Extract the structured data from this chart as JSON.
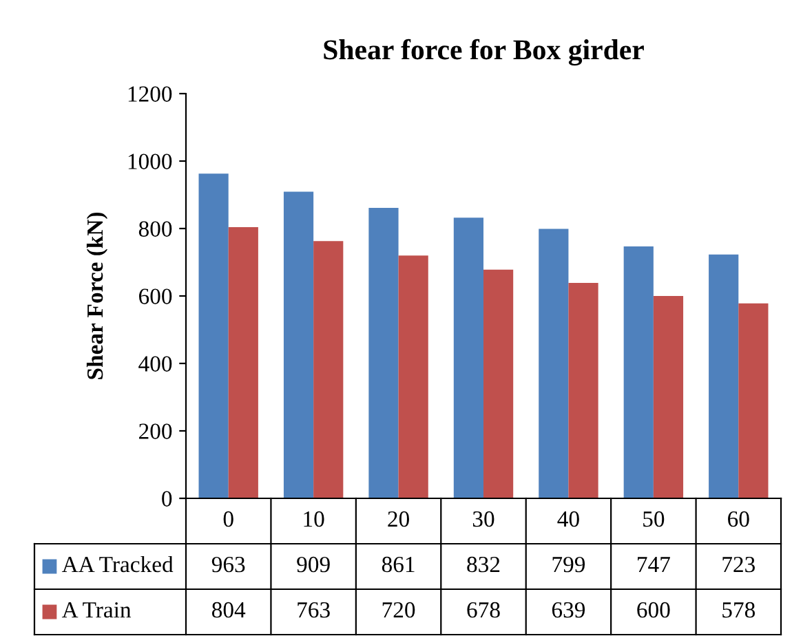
{
  "chart_data": {
    "type": "bar",
    "title": "Shear force for Box girder",
    "ylabel": "Shear Force (kN)",
    "categories": [
      "0",
      "10",
      "20",
      "30",
      "40",
      "50",
      "60"
    ],
    "series": [
      {
        "name": "AA Tracked",
        "color": "#4f81bd",
        "values": [
          963,
          909,
          861,
          832,
          799,
          747,
          723
        ]
      },
      {
        "name": "A Train",
        "color": "#c0504d",
        "values": [
          804,
          763,
          720,
          678,
          639,
          600,
          578
        ]
      }
    ],
    "ylim": [
      0,
      1200
    ],
    "yticks": [
      0,
      200,
      400,
      600,
      800,
      1000,
      1200
    ],
    "grid": false,
    "legend": "bottom left",
    "data_labels": true
  }
}
